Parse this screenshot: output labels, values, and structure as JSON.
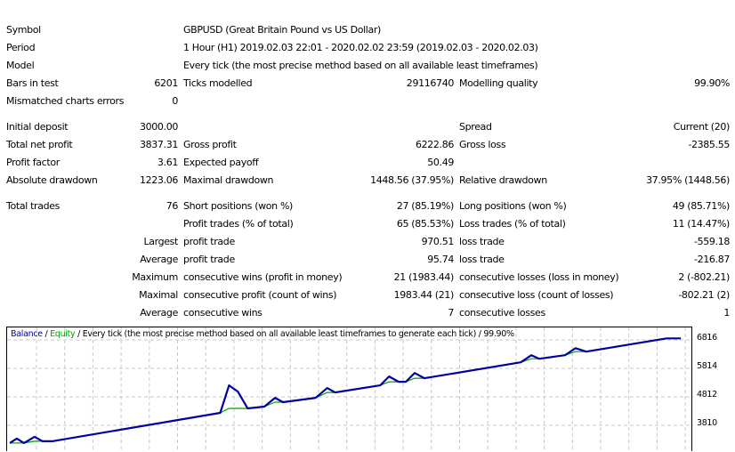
{
  "report": {
    "rows_top": [
      {
        "l1": "Symbol",
        "l2": "GBPUSD (Great Britain Pound vs US Dollar)"
      },
      {
        "l1": "Period",
        "l2": "1 Hour (H1) 2019.02.03 22:01 - 2020.02.02 23:59 (2019.02.03 - 2020.02.03)"
      },
      {
        "l1": "Model",
        "l2": "Every tick (the most precise method based on all available least timeframes)"
      },
      {
        "l1": "Bars in test",
        "v1": "6201",
        "l2": "Ticks modelled",
        "v2": "29116740",
        "l3": "Modelling quality",
        "v3": "99.90%"
      },
      {
        "l1": "Mismatched charts errors",
        "v1": "0"
      }
    ],
    "rows_mid": [
      {
        "l1": "Initial deposit",
        "v1": "3000.00",
        "l3": "Spread",
        "v3": "Current (20)"
      },
      {
        "l1": "Total net profit",
        "v1": "3837.31",
        "l2": "Gross profit",
        "v2": "6222.86",
        "l3": "Gross loss",
        "v3": "-2385.55"
      },
      {
        "l1": "Profit factor",
        "v1": "3.61",
        "l2": "Expected payoff",
        "v2": "50.49"
      },
      {
        "l1": "Absolute drawdown",
        "v1": "1223.06",
        "l2": "Maximal drawdown",
        "v2": "1448.56 (37.95%)",
        "l3": "Relative drawdown",
        "v3": "37.95% (1448.56)"
      }
    ],
    "rows_bottom": [
      {
        "l1": "Total trades",
        "v1": "76",
        "l2": "Short positions (won %)",
        "v2": "27 (85.19%)",
        "l3": "Long positions (won %)",
        "v3": "49 (85.71%)"
      },
      {
        "l2": "Profit trades (% of total)",
        "v2": "65 (85.53%)",
        "l3": "Loss trades (% of total)",
        "v3": "11 (14.47%)"
      },
      {
        "v1": "Largest",
        "l2": "profit trade",
        "v2": "970.51",
        "l3": "loss trade",
        "v3": "-559.18"
      },
      {
        "v1": "Average",
        "l2": "profit trade",
        "v2": "95.74",
        "l3": "loss trade",
        "v3": "-216.87"
      },
      {
        "v1": "Maximum",
        "l2": "consecutive wins (profit in money)",
        "v2": "21 (1983.44)",
        "l3": "consecutive losses (loss in money)",
        "v3": "2 (-802.21)"
      },
      {
        "v1": "Maximal",
        "l2": "consecutive profit (count of wins)",
        "v2": "1983.44 (21)",
        "l3": "consecutive loss (count of losses)",
        "v3": "-802.21 (2)"
      },
      {
        "v1": "Average",
        "l2": "consecutive wins",
        "v2": "7",
        "l3": "consecutive losses",
        "v3": "1"
      }
    ]
  },
  "chart_data": {
    "type": "line",
    "legend": {
      "balance": "Balance",
      "sep1": " / ",
      "equity": "Equity",
      "sep2": " / ",
      "rest": "Every tick (the most precise method based on all available least timeframes to generate each tick) / 99.90%"
    },
    "y_ticks": [
      "6816",
      "5814",
      "4812",
      "3810"
    ],
    "y_tick_values": [
      6816,
      5814,
      4812,
      3810
    ],
    "xlim": [
      0,
      77
    ],
    "grid": true,
    "colors": {
      "balance": "#0000a0",
      "equity": "#00a000",
      "grid": "#c8c8c8"
    },
    "series": [
      {
        "name": "Balance",
        "points": [
          [
            0,
            3188
          ],
          [
            0.8,
            3343
          ],
          [
            1.6,
            3188
          ],
          [
            2.8,
            3406
          ],
          [
            3.7,
            3250
          ],
          [
            4.8,
            3250
          ],
          [
            23.8,
            4248
          ],
          [
            24.8,
            5216
          ],
          [
            25.8,
            4998
          ],
          [
            26.9,
            4405
          ],
          [
            28.8,
            4467
          ],
          [
            30,
            4779
          ],
          [
            30.9,
            4623
          ],
          [
            34.6,
            4779
          ],
          [
            35.9,
            5122
          ],
          [
            36.8,
            4966
          ],
          [
            41.9,
            5216
          ],
          [
            42.9,
            5528
          ],
          [
            44,
            5341
          ],
          [
            44.8,
            5341
          ],
          [
            45.8,
            5652
          ],
          [
            46.9,
            5465
          ],
          [
            57.8,
            6027
          ],
          [
            59,
            6277
          ],
          [
            59.9,
            6152
          ],
          [
            62.8,
            6277
          ],
          [
            64,
            6526
          ],
          [
            65.2,
            6402
          ],
          [
            74.3,
            6869
          ],
          [
            75.9,
            6869
          ]
        ]
      },
      {
        "name": "Equity",
        "points": [
          [
            0,
            3188
          ],
          [
            1.6,
            3188
          ],
          [
            2.8,
            3250
          ],
          [
            3.7,
            3250
          ],
          [
            4.8,
            3250
          ],
          [
            23.8,
            4248
          ],
          [
            24.8,
            4405
          ],
          [
            26.9,
            4405
          ],
          [
            28.8,
            4467
          ],
          [
            30,
            4623
          ],
          [
            30.9,
            4623
          ],
          [
            34.6,
            4779
          ],
          [
            35.9,
            4966
          ],
          [
            36.8,
            4966
          ],
          [
            41.9,
            5216
          ],
          [
            42.9,
            5341
          ],
          [
            44.8,
            5341
          ],
          [
            45.8,
            5465
          ],
          [
            46.9,
            5465
          ],
          [
            57.8,
            6027
          ],
          [
            59,
            6152
          ],
          [
            59.9,
            6152
          ],
          [
            62.8,
            6277
          ],
          [
            64,
            6402
          ],
          [
            65.2,
            6402
          ],
          [
            74.3,
            6869
          ],
          [
            75.9,
            6869
          ]
        ]
      }
    ]
  }
}
